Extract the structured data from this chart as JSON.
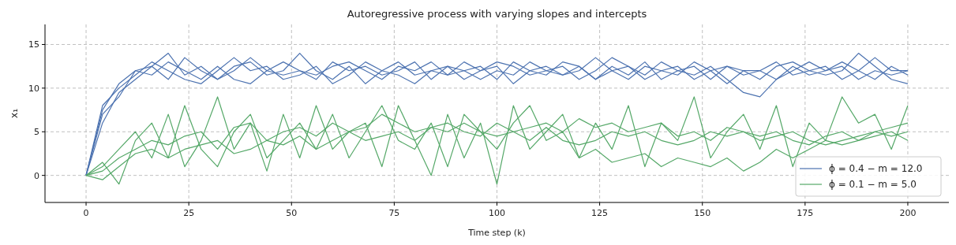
{
  "chart_data": {
    "type": "line",
    "title": "Autoregressive process with varying slopes and intercepts",
    "xlabel": "Time step (k)",
    "ylabel": "x₁",
    "x": [
      0,
      4,
      8,
      12,
      16,
      20,
      24,
      28,
      32,
      36,
      40,
      44,
      48,
      52,
      56,
      60,
      64,
      68,
      72,
      76,
      80,
      84,
      88,
      92,
      96,
      100,
      104,
      108,
      112,
      116,
      120,
      124,
      128,
      132,
      136,
      140,
      144,
      148,
      152,
      156,
      160,
      164,
      168,
      172,
      176,
      180,
      184,
      188,
      192,
      196,
      200
    ],
    "xlim": [
      -10,
      210
    ],
    "ylim": [
      -3.1,
      17.3
    ],
    "xticks": [
      0,
      25,
      50,
      75,
      100,
      125,
      150,
      175,
      200
    ],
    "yticks": [
      0,
      5,
      10,
      15
    ],
    "grid": true,
    "legend": "bottom right",
    "line_style": "solid",
    "marker": "none",
    "series": [
      {
        "name": "ϕ = 0.4 − m = 12.0",
        "color": "#4c72b0",
        "values": [
          0,
          7.5,
          10.5,
          12,
          11.5,
          13,
          12,
          11,
          12.5,
          11,
          10.5,
          12,
          13,
          12,
          11.5,
          12.5,
          13,
          12,
          11,
          12.5,
          12,
          13,
          11.5,
          12,
          12.5,
          11,
          13,
          12,
          12.5,
          11.5,
          12,
          13.5,
          12,
          11,
          12.5,
          12,
          11.5,
          13,
          12,
          10.5,
          12,
          11,
          12.5,
          13,
          12,
          11.5,
          12,
          14,
          12.5,
          11,
          10.5
        ]
      },
      {
        "color": "#4c72b0",
        "values": [
          0,
          6,
          9.5,
          11,
          12.5,
          11,
          13.5,
          12,
          11,
          12.5,
          13,
          11.5,
          12,
          14,
          12,
          11,
          12.5,
          10.5,
          12,
          13,
          11.5,
          12,
          12.5,
          11,
          12,
          13,
          12.5,
          11.5,
          12,
          12.5,
          11,
          12,
          13.5,
          12.5,
          11,
          12,
          12.5,
          11,
          12,
          12.5,
          11.5,
          12,
          11,
          12.5,
          11.5,
          12,
          13,
          12,
          11,
          12.5,
          11.5
        ]
      },
      {
        "color": "#4c72b0",
        "values": [
          0,
          8,
          10,
          11.5,
          13,
          12,
          11,
          10.5,
          12,
          13.5,
          12,
          12.5,
          11,
          11.5,
          12.5,
          10.5,
          11.5,
          13,
          12,
          11.5,
          10.5,
          12,
          11.5,
          13,
          12,
          12.5,
          10.5,
          12,
          11.5,
          13,
          12.5,
          11,
          12,
          12.5,
          11.5,
          13,
          12,
          11.5,
          12.5,
          11,
          9.5,
          9,
          11,
          12,
          13,
          12,
          12.5,
          11,
          12,
          11.5,
          12
        ]
      },
      {
        "color": "#4c72b0",
        "values": [
          0,
          7,
          9,
          12,
          12.5,
          14,
          11.5,
          12.5,
          11,
          12,
          13.5,
          12,
          11.5,
          12,
          11,
          13,
          12,
          12.5,
          11.5,
          12,
          13,
          11,
          12.5,
          12,
          11,
          12,
          11.5,
          13,
          12,
          11.5,
          12.5,
          11,
          12.5,
          11.5,
          13,
          11,
          12,
          12.5,
          11,
          12.5,
          12,
          12,
          13,
          11.5,
          12,
          12.5,
          11,
          12,
          13.5,
          12,
          12
        ]
      },
      {
        "name": "ϕ = 0.1 − m = 5.0",
        "color": "#55a868",
        "values": [
          0,
          1,
          3,
          5,
          2,
          7,
          1,
          4,
          9,
          3,
          6,
          0.5,
          7,
          2,
          8,
          3,
          5,
          6,
          1,
          8,
          4,
          0,
          7,
          2,
          6,
          -1,
          8,
          3,
          5,
          7,
          2,
          6,
          3,
          8,
          1,
          6,
          4,
          9,
          2,
          5,
          7,
          3,
          8,
          1,
          6,
          4,
          9,
          6,
          7,
          3,
          8
        ]
      },
      {
        "color": "#55a868",
        "values": [
          0,
          0.5,
          2,
          3,
          4,
          3.5,
          4.5,
          5,
          3,
          5.5,
          6,
          4,
          5,
          5.5,
          4.5,
          6,
          5,
          5.5,
          7,
          6,
          5,
          5.5,
          6,
          5,
          4.5,
          6,
          5,
          4,
          5.5,
          4,
          3.5,
          4,
          5,
          4.5,
          5,
          4,
          3.5,
          4,
          5,
          4.5,
          5,
          4,
          4.5,
          5,
          4,
          3.5,
          4,
          4.5,
          5,
          4.5,
          5
        ]
      },
      {
        "color": "#55a868",
        "values": [
          0,
          -0.5,
          1,
          2.5,
          3,
          2,
          3,
          3.5,
          4,
          2.5,
          3,
          4,
          3.5,
          4.5,
          3,
          4,
          5,
          4,
          4.5,
          5,
          4,
          5.5,
          5,
          6,
          5,
          4.5,
          5,
          5.5,
          6,
          5,
          6.5,
          5.5,
          6,
          5,
          5.5,
          6,
          4.5,
          5,
          4,
          5.5,
          5,
          4.5,
          5,
          4,
          3.5,
          4.5,
          5,
          4,
          5,
          5.5,
          6
        ]
      },
      {
        "color": "#55a868",
        "values": [
          0,
          1.5,
          -1,
          4,
          6,
          2,
          8,
          3,
          1,
          5,
          7,
          2,
          4,
          6,
          3,
          7,
          2,
          5,
          8,
          4,
          3,
          6,
          1,
          7,
          5,
          3,
          6,
          8,
          4,
          5,
          2,
          3,
          1.5,
          2,
          2.5,
          1,
          2,
          1.5,
          1,
          2,
          0.5,
          1.5,
          3,
          2,
          3,
          4,
          3.5,
          4,
          4.5,
          5,
          4
        ]
      }
    ]
  }
}
